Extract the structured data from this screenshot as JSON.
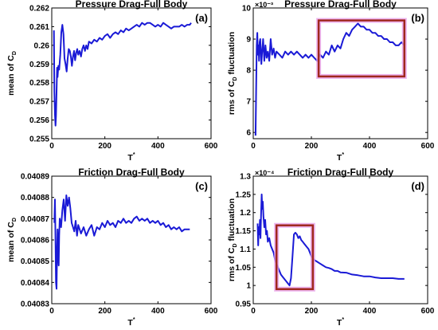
{
  "chart_data": [
    {
      "id": "a",
      "type": "line",
      "title": "Pressure Drag-Full Body",
      "panel_tag": "(a)",
      "xlabel_main": "T",
      "xlabel_sup": "*",
      "ylabel_main": "mean of C",
      "ylabel_sub": "D",
      "y_exponent": "",
      "xlim": [
        0,
        600
      ],
      "ylim": [
        0.255,
        0.262
      ],
      "xticks": [
        0,
        200,
        400,
        600
      ],
      "xtick_labels": [
        "0",
        "200",
        "400",
        "600"
      ],
      "yticks": [
        0.255,
        0.256,
        0.257,
        0.258,
        0.259,
        0.26,
        0.261,
        0.262
      ],
      "ytick_labels": [
        "0.255",
        "0.256",
        "0.257",
        "0.258",
        "0.259",
        "0.26",
        "0.261",
        "0.262"
      ],
      "line_color": "#1a1ad6",
      "series": [
        {
          "x": [
            8,
            10,
            12,
            14,
            16,
            18,
            20,
            22,
            25,
            28,
            32,
            36,
            40,
            44,
            48,
            52,
            56,
            60,
            64,
            68,
            72,
            76,
            80,
            84,
            88,
            92,
            96,
            100,
            105,
            110,
            115,
            120,
            125,
            130,
            135,
            140,
            150,
            160,
            170,
            180,
            190,
            200,
            210,
            220,
            230,
            240,
            250,
            260,
            270,
            280,
            290,
            300,
            310,
            320,
            330,
            340,
            350,
            360,
            370,
            380,
            390,
            400,
            410,
            420,
            430,
            440,
            450,
            460,
            470,
            480,
            490,
            500,
            510,
            520,
            525
          ],
          "y": [
            0.2608,
            0.2575,
            0.2563,
            0.2557,
            0.2562,
            0.2575,
            0.2588,
            0.2583,
            0.2589,
            0.2587,
            0.2595,
            0.2607,
            0.2611,
            0.2606,
            0.2593,
            0.259,
            0.2586,
            0.2593,
            0.2598,
            0.2597,
            0.2594,
            0.2589,
            0.2594,
            0.2597,
            0.2592,
            0.2596,
            0.2598,
            0.2595,
            0.2597,
            0.2594,
            0.2598,
            0.26,
            0.2597,
            0.26,
            0.2598,
            0.2602,
            0.2601,
            0.2603,
            0.2602,
            0.2604,
            0.2603,
            0.2605,
            0.2606,
            0.2604,
            0.2606,
            0.2607,
            0.2606,
            0.2608,
            0.2607,
            0.2609,
            0.2608,
            0.2609,
            0.261,
            0.2611,
            0.261,
            0.2612,
            0.2611,
            0.2612,
            0.2612,
            0.2611,
            0.261,
            0.2611,
            0.261,
            0.2612,
            0.2611,
            0.261,
            0.2609,
            0.261,
            0.261,
            0.261,
            0.2611,
            0.261,
            0.2611,
            0.2611,
            0.2612
          ]
        }
      ]
    },
    {
      "id": "b",
      "type": "line",
      "title": "Pressure Drag-Full Body",
      "panel_tag": "(b)",
      "xlabel_main": "T",
      "xlabel_sup": "*",
      "ylabel_main": "rms of C",
      "ylabel_sub": "D",
      "ylabel_tail": " fluctuation",
      "y_exponent": "×10⁻³",
      "xlim": [
        0,
        600
      ],
      "ylim": [
        5.8,
        10
      ],
      "xticks": [
        0,
        200,
        400,
        600
      ],
      "xtick_labels": [
        "0",
        "200",
        "400",
        "600"
      ],
      "yticks": [
        6,
        7,
        8,
        9,
        10
      ],
      "ytick_labels": [
        "6",
        "7",
        "8",
        "9",
        "10"
      ],
      "line_color": "#1a1ad6",
      "box_color": "#a0281e",
      "box_glow_color": "#e8a0e8",
      "highlight_box": {
        "x": [
          225,
          520
        ],
        "y": [
          7.8,
          9.6
        ]
      },
      "series": [
        {
          "x": [
            8,
            10,
            12,
            14,
            16,
            18,
            20,
            22,
            24,
            26,
            28,
            30,
            34,
            38,
            42,
            46,
            50,
            55,
            60,
            65,
            70,
            75,
            80,
            90,
            100,
            110,
            120,
            130,
            140,
            150,
            160,
            170,
            180,
            190,
            200,
            210,
            220,
            230,
            240,
            250,
            260,
            270,
            280,
            290,
            300,
            310,
            320,
            330,
            340,
            350,
            360,
            370,
            380,
            390,
            400,
            410,
            420,
            430,
            440,
            450,
            460,
            470,
            480,
            490,
            500,
            510,
            520
          ],
          "y": [
            5.9,
            7.3,
            8.8,
            9.2,
            8.5,
            8.8,
            8.3,
            8.9,
            9.0,
            8.6,
            8.2,
            8.5,
            9.0,
            8.3,
            8.8,
            8.4,
            8.6,
            8.3,
            9.0,
            8.5,
            8.7,
            8.4,
            8.6,
            8.5,
            8.4,
            8.6,
            8.5,
            8.6,
            8.5,
            8.6,
            8.5,
            8.4,
            8.5,
            8.4,
            8.5,
            8.4,
            8.3,
            8.5,
            8.4,
            8.6,
            8.5,
            8.8,
            8.6,
            8.8,
            8.7,
            9.0,
            9.2,
            9.1,
            9.3,
            9.4,
            9.5,
            9.4,
            9.4,
            9.3,
            9.3,
            9.2,
            9.2,
            9.1,
            9.1,
            9.0,
            9.0,
            8.9,
            8.9,
            8.8,
            8.8,
            8.9,
            8.8
          ]
        }
      ]
    },
    {
      "id": "c",
      "type": "line",
      "title": "Friction Drag-Full Body",
      "panel_tag": "(c)",
      "xlabel_main": "T",
      "xlabel_sup": "*",
      "ylabel_main": "mean of C",
      "ylabel_sub": "D",
      "y_exponent": "",
      "xlim": [
        0,
        600
      ],
      "ylim": [
        0.04083,
        0.04089
      ],
      "xticks": [
        0,
        200,
        400,
        600
      ],
      "xtick_labels": [
        "0",
        "200",
        "400",
        "600"
      ],
      "yticks": [
        0.04083,
        0.04084,
        0.04085,
        0.04086,
        0.04087,
        0.04088,
        0.04089
      ],
      "ytick_labels": [
        "0.04083",
        "0.04084",
        "0.04085",
        "0.04086",
        "0.04087",
        "0.04088",
        "0.04089"
      ],
      "line_color": "#1a1ad6",
      "series": [
        {
          "x": [
            10,
            12,
            14,
            16,
            18,
            20,
            22,
            24,
            26,
            28,
            30,
            35,
            40,
            45,
            50,
            55,
            60,
            65,
            70,
            75,
            80,
            85,
            90,
            95,
            100,
            110,
            120,
            130,
            140,
            150,
            160,
            170,
            180,
            190,
            200,
            210,
            220,
            230,
            240,
            250,
            260,
            270,
            280,
            290,
            300,
            310,
            320,
            330,
            340,
            350,
            360,
            370,
            380,
            390,
            400,
            410,
            420,
            430,
            440,
            450,
            460,
            470,
            480,
            490,
            500,
            510,
            520
          ],
          "y": [
            0.040868,
            0.040879,
            0.04086,
            0.04084,
            0.040837,
            0.040855,
            0.040865,
            0.040853,
            0.040848,
            0.040862,
            0.04087,
            0.040866,
            0.040874,
            0.040879,
            0.040869,
            0.040881,
            0.040876,
            0.04088,
            0.040875,
            0.040868,
            0.040866,
            0.040864,
            0.040869,
            0.040862,
            0.040867,
            0.040863,
            0.040866,
            0.040862,
            0.040865,
            0.040867,
            0.040862,
            0.040866,
            0.040865,
            0.040868,
            0.040866,
            0.040869,
            0.040867,
            0.040868,
            0.040866,
            0.040869,
            0.040868,
            0.04087,
            0.040868,
            0.040869,
            0.040868,
            0.04087,
            0.040871,
            0.040869,
            0.04087,
            0.040869,
            0.04087,
            0.040868,
            0.040869,
            0.040868,
            0.040869,
            0.040867,
            0.040868,
            0.040866,
            0.040867,
            0.040865,
            0.040866,
            0.040865,
            0.040866,
            0.040864,
            0.040865,
            0.040865,
            0.040865
          ]
        }
      ]
    },
    {
      "id": "d",
      "type": "line",
      "title": "Friction Drag-Full Body",
      "panel_tag": "(d)",
      "xlabel_main": "T",
      "xlabel_sup": "*",
      "ylabel_main": "rms of C",
      "ylabel_sub": "D",
      "ylabel_tail": " fluctuation",
      "y_exponent": "×10⁻⁴",
      "xlim": [
        0,
        600
      ],
      "ylim": [
        0.95,
        1.3
      ],
      "xticks": [
        0,
        200,
        400,
        600
      ],
      "xtick_labels": [
        "0",
        "200",
        "400",
        "600"
      ],
      "yticks": [
        0.95,
        1.0,
        1.05,
        1.1,
        1.15,
        1.2,
        1.25,
        1.3
      ],
      "ytick_labels": [
        "0.95",
        "1",
        "1.05",
        "1.1",
        "1.15",
        "1.2",
        "1.25",
        "1.3"
      ],
      "line_color": "#1a1ad6",
      "box_color": "#a0281e",
      "box_glow_color": "#e8a0e8",
      "highlight_box": {
        "x": [
          80,
          205
        ],
        "y": [
          0.99,
          1.165
        ]
      },
      "series": [
        {
          "x": [
            15,
            17,
            19,
            21,
            23,
            25,
            27,
            29,
            31,
            33,
            35,
            38,
            41,
            44,
            47,
            50,
            55,
            60,
            65,
            70,
            75,
            80,
            85,
            90,
            95,
            100,
            105,
            110,
            115,
            120,
            125,
            130,
            135,
            140,
            145,
            150,
            155,
            160,
            165,
            170,
            175,
            180,
            185,
            190,
            195,
            200,
            210,
            220,
            230,
            240,
            250,
            260,
            270,
            280,
            290,
            300,
            320,
            340,
            360,
            380,
            400,
            420,
            440,
            460,
            480,
            500,
            520
          ],
          "y": [
            1.17,
            1.11,
            1.16,
            1.14,
            1.18,
            1.13,
            1.2,
            1.25,
            1.21,
            1.23,
            1.19,
            1.16,
            1.18,
            1.14,
            1.15,
            1.12,
            1.13,
            1.11,
            1.1,
            1.09,
            1.07,
            1.06,
            1.05,
            1.04,
            1.03,
            1.025,
            1.02,
            1.015,
            1.01,
            1.005,
            1.0,
            1.02,
            1.08,
            1.14,
            1.145,
            1.14,
            1.13,
            1.135,
            1.125,
            1.12,
            1.115,
            1.11,
            1.105,
            1.1,
            1.09,
            1.08,
            1.07,
            1.065,
            1.06,
            1.055,
            1.05,
            1.048,
            1.045,
            1.04,
            1.04,
            1.036,
            1.035,
            1.03,
            1.028,
            1.025,
            1.025,
            1.022,
            1.02,
            1.02,
            1.02,
            1.018,
            1.018
          ]
        }
      ]
    }
  ]
}
